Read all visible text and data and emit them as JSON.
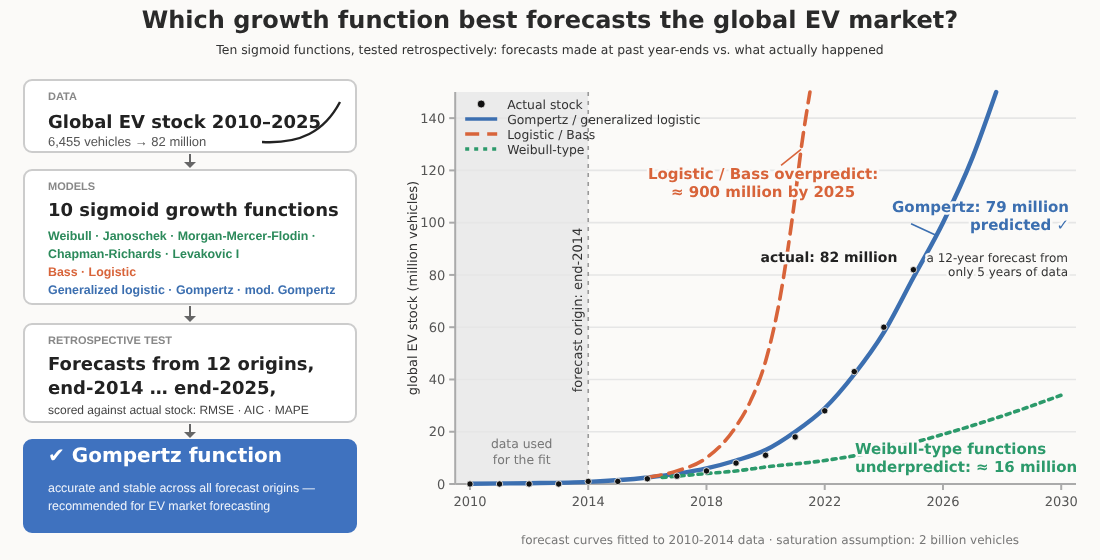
{
  "chart_data": [
    {
      "type": "other",
      "annotations": [
        "DATA",
        "Global EV stock 2010–2025",
        "6,455 vehicles → 82 million",
        "MODELS",
        "10 sigmoid growth functions",
        "Weibull · Janoschek · Morgan-Mercer-Flodin ·",
        "Chapman-Richards · Levakovic I",
        "Bass · Logistic",
        "Generalized logistic · Gompertz · mod. Gompertz",
        "RETROSPECTIVE TEST",
        "Forecasts from 12 origins,",
        "end-2014 … end-2025,",
        "scored against actual stock:  RMSE · AIC · MAPE",
        "✔  Gompertz function",
        "accurate and stable across all forecast origins —",
        "recommended for EV market forecasting"
      ]
    },
    {
      "type": "line",
      "title": "Which growth function best forecasts the global EV market?",
      "subtitle": "Ten sigmoid functions, tested retrospectively: forecasts made at past year-ends vs. what actually happened",
      "ylabel": "global EV stock  (million vehicles)",
      "xlim": [
        2009.5,
        2030.5
      ],
      "xticks": [
        2010,
        2014,
        2018,
        2022,
        2026,
        2030
      ],
      "ylim": [
        0,
        150
      ],
      "yticks": [
        0,
        20,
        40,
        60,
        80,
        100,
        120,
        140
      ],
      "grid": "y",
      "legend": "top left",
      "series": [
        {
          "name": "Actual stock",
          "type": "scatter",
          "marker": "circle",
          "color": "#111111",
          "x": [
            2010,
            2011,
            2012,
            2013,
            2014,
            2015,
            2016,
            2017,
            2018,
            2019,
            2020,
            2021,
            2022,
            2023,
            2024,
            2025
          ],
          "values": [
            0,
            0,
            0,
            0,
            1,
            1,
            2,
            3,
            5,
            8,
            11,
            18,
            28,
            43,
            60,
            82
          ]
        },
        {
          "name": "Gompertz / generalized logistic",
          "color": "#3c6fb0",
          "line_style": "solid",
          "x": [
            2010,
            2012,
            2014,
            2016,
            2018,
            2019,
            2020,
            2021,
            2022,
            2023,
            2024,
            2025,
            2026,
            2027,
            2027.8
          ],
          "values": [
            0.1,
            0.3,
            0.8,
            2.5,
            6,
            9,
            13,
            20,
            29,
            42,
            58,
            79,
            100,
            125,
            150
          ]
        },
        {
          "name": "Logistic / Bass",
          "color": "#d8643a",
          "line_style": "dashed",
          "x": [
            2016,
            2017,
            2018,
            2019,
            2019.5,
            2020,
            2020.5,
            2021,
            2021.2,
            2021.5
          ],
          "values": [
            2.5,
            5,
            10,
            22,
            32,
            47,
            72,
            110,
            128,
            150
          ]
        },
        {
          "name": "Weibull-type",
          "color": "#2c9a6b",
          "line_style": "dotted",
          "x": [
            2016.5,
            2017,
            2018,
            2019,
            2020,
            2022,
            2024,
            2026,
            2028,
            2030
          ],
          "values": [
            2.5,
            3,
            4,
            5,
            6.5,
            9,
            13,
            19,
            26,
            34
          ]
        }
      ],
      "bands": [
        {
          "axis": "x",
          "from": 2009.5,
          "to": 2014,
          "label": "data used\nfor the fit",
          "color": "#ebebeb"
        }
      ],
      "ref_lines": [
        {
          "axis": "x",
          "value": 2014,
          "label": "forecast origin: end-2014",
          "color": "#999999",
          "line_style": "dotted"
        }
      ],
      "annotations": [
        {
          "text": "Logistic / Bass overpredict:\n≈ 900 million by 2025",
          "x": 2021.2,
          "y": 128
        },
        {
          "text": "Gompertz:  79 million\npredicted ✓",
          "x": 2025.8,
          "y": 95
        },
        {
          "text": "actual: 82 million",
          "x": 2025,
          "y": 82
        },
        "a 12-year forecast from\nonly 5 years of data",
        {
          "text": "Weibull-type functions\nunderpredict:  ≈ 16 million",
          "x": 2026,
          "y": 19
        },
        "forecast curves fitted to 2010-2014 data · saturation assumption: 2 billion vehicles"
      ]
    }
  ]
}
